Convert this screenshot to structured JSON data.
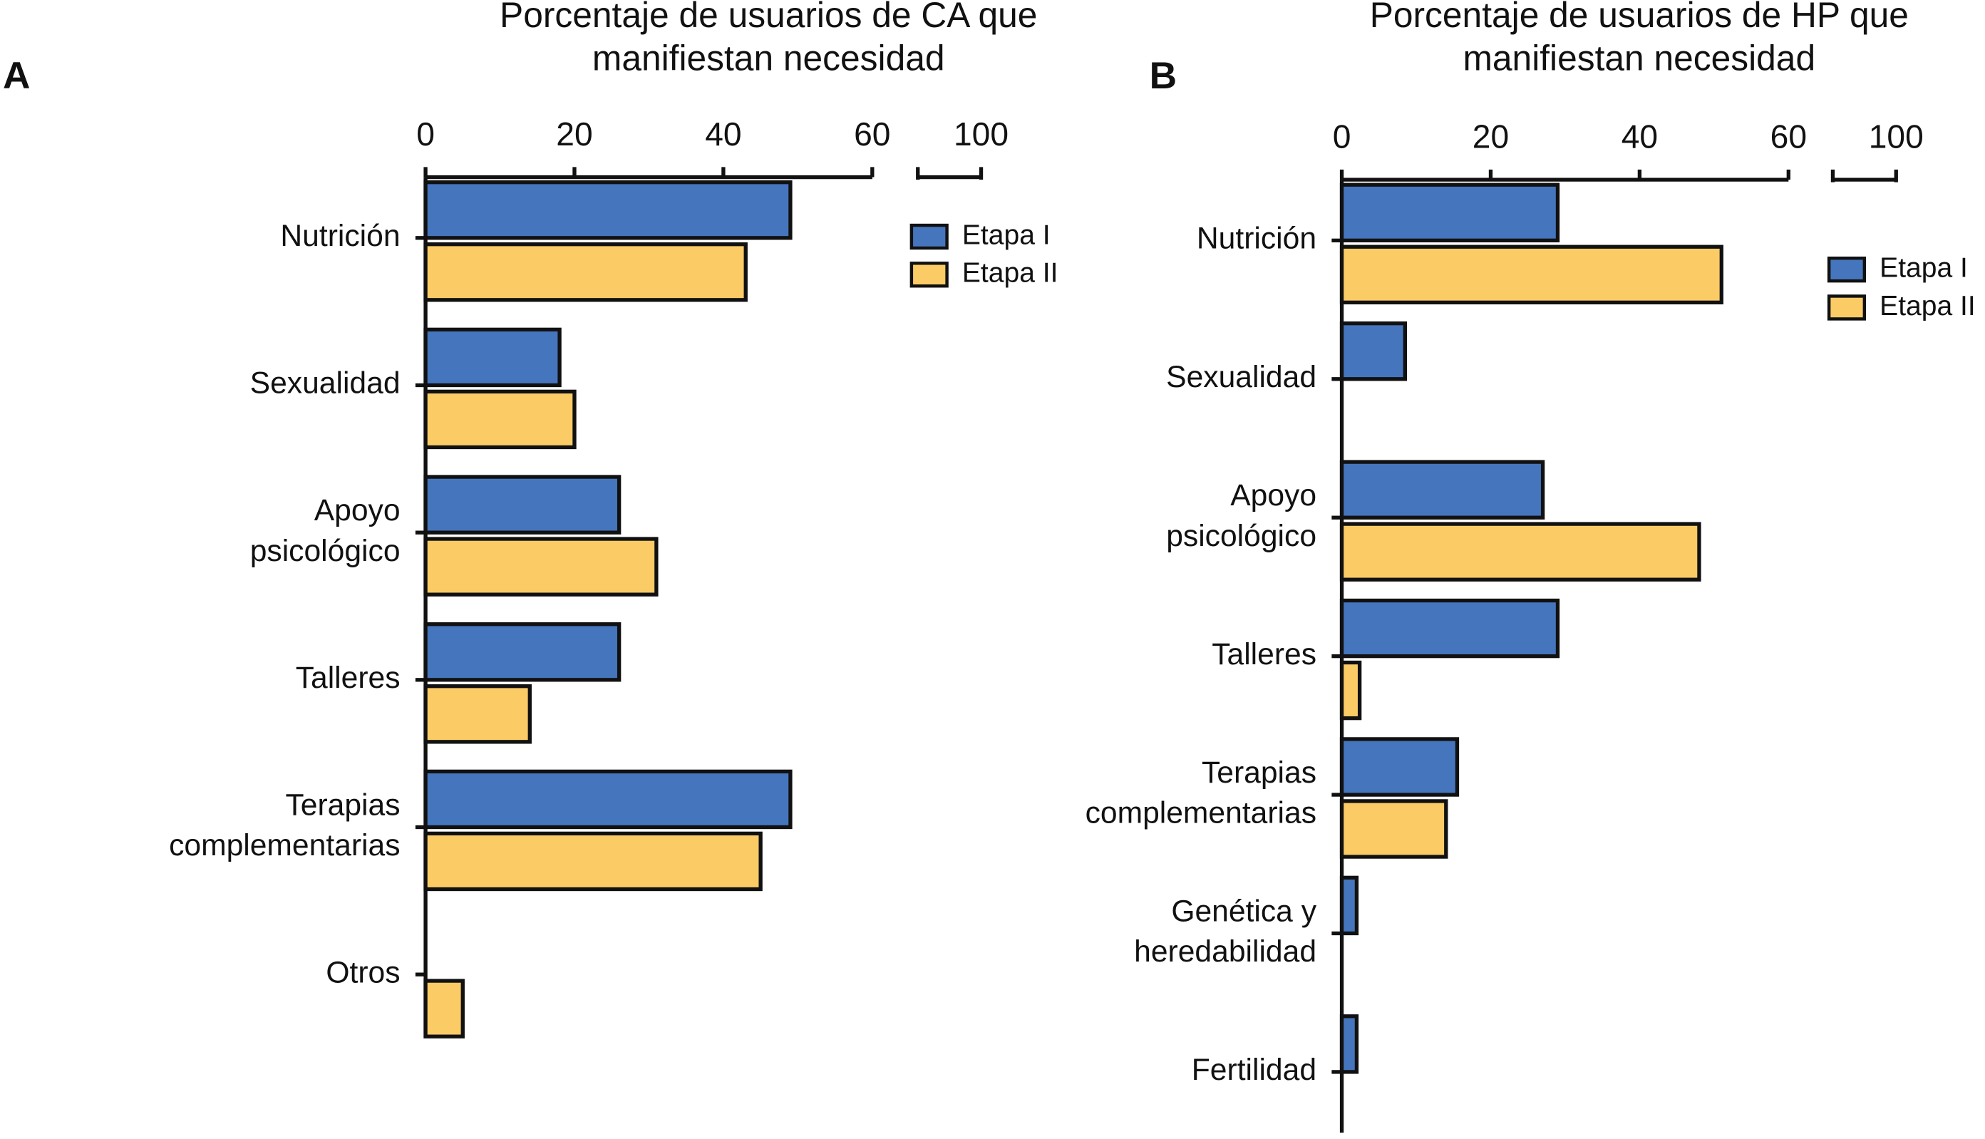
{
  "chart_data": [
    {
      "type": "bar",
      "orientation": "horizontal",
      "panel_label": "A",
      "title": [
        "Porcentaje de usuarios de CA que",
        "manifiestan necesidad"
      ],
      "categories": [
        [
          "Nutrición"
        ],
        [
          "Sexualidad"
        ],
        [
          "Apoyo",
          "psicológico"
        ],
        [
          "Talleres"
        ],
        [
          "Terapias",
          "complementarias"
        ],
        [
          "Otros"
        ]
      ],
      "series": [
        {
          "name": "Etapa I",
          "color": "#4575bd",
          "values": [
            49,
            18,
            26,
            26,
            49,
            null
          ]
        },
        {
          "name": "Etapa II",
          "color": "#fbcb66",
          "values": [
            43,
            20,
            31,
            14,
            45,
            5
          ]
        }
      ],
      "xlim": [
        0,
        60
      ],
      "xticks": [
        0,
        20,
        40,
        60
      ],
      "xlim_break": [
        90,
        100
      ],
      "xticks_break": [
        100
      ],
      "legend": "top-right",
      "grid": false
    },
    {
      "type": "bar",
      "orientation": "horizontal",
      "panel_label": "B",
      "title": [
        "Porcentaje de usuarios de HP que",
        "manifiestan necesidad"
      ],
      "categories": [
        [
          "Nutrición"
        ],
        [
          "Sexualidad"
        ],
        [
          "Apoyo",
          "psicológico"
        ],
        [
          "Talleres"
        ],
        [
          "Terapias",
          "complementarias"
        ],
        [
          "Genética y",
          "heredabilidad"
        ],
        [
          "Fertilidad"
        ]
      ],
      "series": [
        {
          "name": "Etapa I",
          "color": "#4575bd",
          "values": [
            29,
            8.5,
            27,
            29,
            15.5,
            2,
            2
          ]
        },
        {
          "name": "Etapa II",
          "color": "#fbcb66",
          "values": [
            51,
            null,
            48,
            2.4,
            14,
            null,
            null
          ]
        }
      ],
      "xlim": [
        0,
        60
      ],
      "xticks": [
        0,
        20,
        40,
        60
      ],
      "xlim_break": [
        90,
        100
      ],
      "xticks_break": [
        100
      ],
      "legend": "top-right",
      "grid": false
    }
  ]
}
